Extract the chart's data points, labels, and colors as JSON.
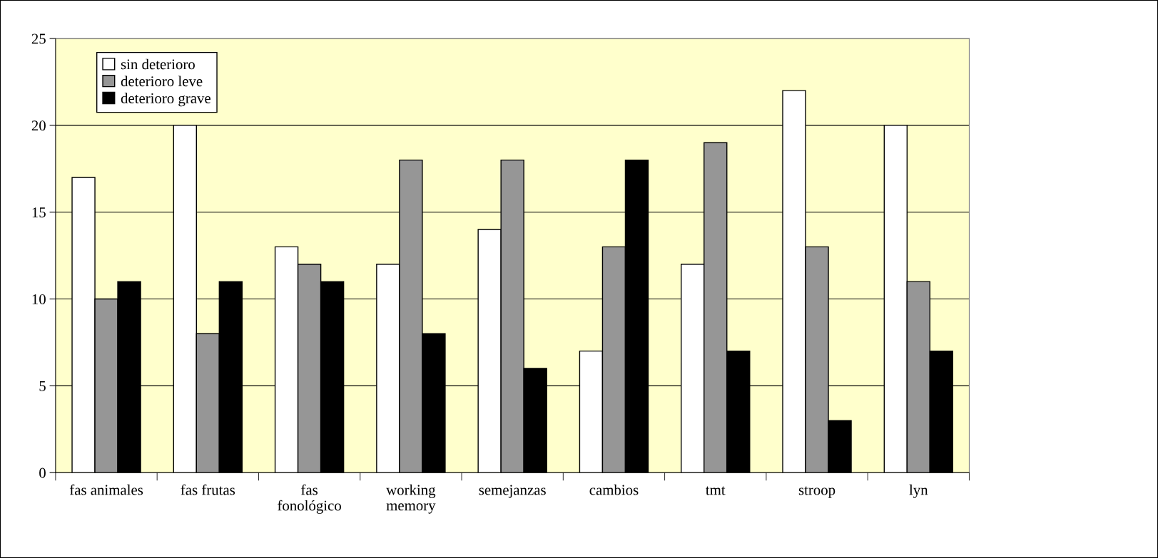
{
  "chart_data": {
    "type": "bar",
    "categories": [
      "fas animales",
      "fas frutas",
      "fas\nfonológico",
      "working\nmemory",
      "semejanzas",
      "cambios",
      "tmt",
      "stroop",
      "lyn"
    ],
    "series": [
      {
        "name": "sin deterioro",
        "color": "#ffffff",
        "values": [
          17,
          20,
          13,
          12,
          14,
          7,
          12,
          22,
          20
        ]
      },
      {
        "name": "deterioro leve",
        "color": "#969696",
        "values": [
          10,
          8,
          12,
          18,
          18,
          13,
          19,
          13,
          11
        ]
      },
      {
        "name": "deterioro grave",
        "color": "#000000",
        "values": [
          11,
          11,
          11,
          8,
          6,
          18,
          7,
          3,
          7
        ]
      }
    ],
    "ylim": [
      0,
      25
    ],
    "yticks": [
      0,
      5,
      10,
      15,
      20,
      25
    ],
    "grid": "y",
    "legend": "top left"
  }
}
